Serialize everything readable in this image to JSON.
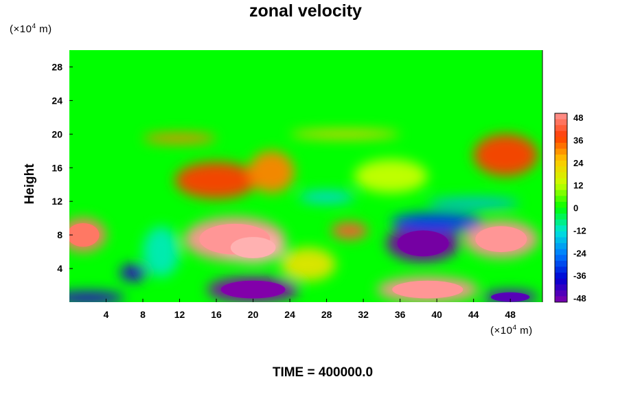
{
  "chart_data": {
    "type": "heatmap",
    "title": "zonal velocity",
    "ylabel": "Height",
    "x_unit": "(×10",
    "x_unit_exp": "4",
    "x_unit_suffix": " m)",
    "y_unit": "(×10",
    "y_unit_exp": "4",
    "y_unit_suffix": " m)",
    "xlim": [
      0,
      51.5
    ],
    "ylim": [
      0,
      30
    ],
    "x_ticks": [
      4,
      8,
      12,
      16,
      20,
      24,
      28,
      32,
      36,
      40,
      44,
      48
    ],
    "y_ticks": [
      4,
      8,
      12,
      16,
      20,
      24,
      28
    ],
    "colorbar": {
      "min": -48,
      "max": 48,
      "ticks": [
        48,
        36,
        24,
        12,
        0,
        -12,
        -24,
        -36,
        -48
      ]
    },
    "features": [
      {
        "x": 18,
        "y": 7.5,
        "rx": 5.5,
        "ry": 2.6,
        "value": 48
      },
      {
        "x": 20,
        "y": 6.5,
        "rx": 3.5,
        "ry": 1.8,
        "value": 52
      },
      {
        "x": 16,
        "y": 14.5,
        "rx": 4.5,
        "ry": 2.2,
        "value": 36
      },
      {
        "x": 22,
        "y": 15.5,
        "rx": 2.5,
        "ry": 2.5,
        "value": 30
      },
      {
        "x": 47,
        "y": 7.5,
        "rx": 4.0,
        "ry": 2.2,
        "value": 48
      },
      {
        "x": 47.5,
        "y": 17.5,
        "rx": 3.5,
        "ry": 2.5,
        "value": 36
      },
      {
        "x": 39,
        "y": 1.5,
        "rx": 5.5,
        "ry": 1.5,
        "value": 48
      },
      {
        "x": 1.5,
        "y": 8,
        "rx": 2.5,
        "ry": 2.0,
        "value": 44
      },
      {
        "x": 38.5,
        "y": 7.0,
        "rx": 4.0,
        "ry": 2.2,
        "value": -52
      },
      {
        "x": 20,
        "y": 1.5,
        "rx": 5.0,
        "ry": 1.5,
        "value": -48
      },
      {
        "x": 7,
        "y": 3.5,
        "rx": 1.5,
        "ry": 1.0,
        "value": -40
      },
      {
        "x": 30.5,
        "y": 8.5,
        "rx": 2.0,
        "ry": 1.0,
        "value": 40
      },
      {
        "x": 2,
        "y": 0.5,
        "rx": 4.0,
        "ry": 0.8,
        "value": -40
      },
      {
        "x": 48,
        "y": 0.6,
        "rx": 3.0,
        "ry": 0.8,
        "value": -44
      },
      {
        "x": 40,
        "y": 9.5,
        "rx": 5.0,
        "ry": 1.2,
        "value": -30
      },
      {
        "x": 10,
        "y": 6,
        "rx": 2.0,
        "ry": 3.0,
        "value": -10
      },
      {
        "x": 12,
        "y": 19.5,
        "rx": 4.0,
        "ry": 0.6,
        "value": 30
      },
      {
        "x": 30,
        "y": 20,
        "rx": 6.0,
        "ry": 0.5,
        "value": 24
      },
      {
        "x": 28,
        "y": 12.5,
        "rx": 3.0,
        "ry": 0.7,
        "value": -14
      },
      {
        "x": 44,
        "y": 11.8,
        "rx": 5.0,
        "ry": 0.6,
        "value": -18
      },
      {
        "x": 26,
        "y": 4.5,
        "rx": 3.0,
        "ry": 2.0,
        "value": 18
      },
      {
        "x": 35,
        "y": 15,
        "rx": 4.0,
        "ry": 2.0,
        "value": 12
      }
    ]
  },
  "footer_text": "TIME = 400000.0"
}
